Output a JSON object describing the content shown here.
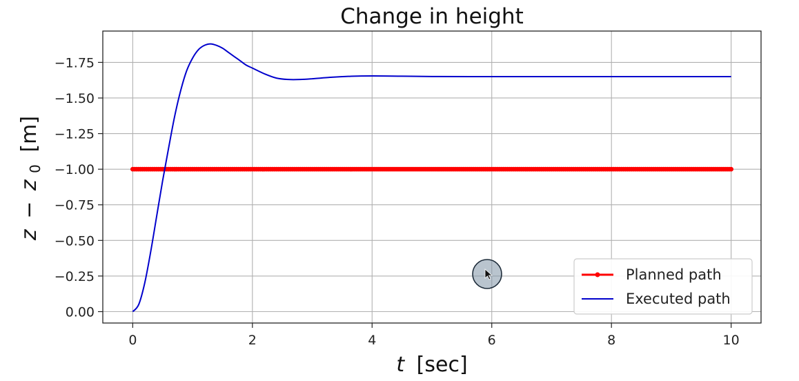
{
  "chart_data": {
    "type": "line",
    "title": "Change in height",
    "xlabel": {
      "var": "t",
      "unit": "[sec]"
    },
    "ylabel": {
      "var": "z",
      "minus": "−",
      "sub_base": "z",
      "sub": "0",
      "unit": "[m]"
    },
    "xlim": [
      -0.5,
      10.5
    ],
    "ylim": [
      0.08,
      -1.97
    ],
    "y_inverted": true,
    "grid": true,
    "legend_position": "lower-right",
    "x_ticks": [
      0,
      2,
      4,
      6,
      8,
      10
    ],
    "x_tick_labels": [
      "0",
      "2",
      "4",
      "6",
      "8",
      "10"
    ],
    "y_ticks": [
      0.0,
      -0.25,
      -0.5,
      -0.75,
      -1.0,
      -1.25,
      -1.5,
      -1.75
    ],
    "y_tick_labels": [
      "0.00",
      "−0.25",
      "−0.50",
      "−0.75",
      "−1.00",
      "−1.25",
      "−1.50",
      "−1.75"
    ],
    "series": [
      {
        "name": "Planned path",
        "color": "#ff0000",
        "style": "line-with-markers",
        "x": [
          0,
          10
        ],
        "y": [
          -1.0,
          -1.0
        ]
      },
      {
        "name": "Executed path",
        "color": "#0000cc",
        "style": "line",
        "x": [
          0,
          0.1,
          0.2,
          0.3,
          0.4,
          0.5,
          0.6,
          0.7,
          0.8,
          0.9,
          1.0,
          1.1,
          1.2,
          1.3,
          1.4,
          1.5,
          1.6,
          1.7,
          1.8,
          1.9,
          2.0,
          2.2,
          2.4,
          2.6,
          2.8,
          3.0,
          3.3,
          3.6,
          4.0,
          4.5,
          5.0,
          6.0,
          7.0,
          8.0,
          9.0,
          10.0
        ],
        "y": [
          0.0,
          -0.05,
          -0.2,
          -0.42,
          -0.67,
          -0.92,
          -1.15,
          -1.37,
          -1.55,
          -1.69,
          -1.78,
          -1.84,
          -1.87,
          -1.88,
          -1.87,
          -1.85,
          -1.82,
          -1.79,
          -1.76,
          -1.73,
          -1.71,
          -1.67,
          -1.64,
          -1.63,
          -1.63,
          -1.635,
          -1.645,
          -1.652,
          -1.655,
          -1.653,
          -1.651,
          -1.65,
          -1.65,
          -1.65,
          -1.65,
          -1.65
        ]
      }
    ]
  },
  "cursor": {
    "icon": "cursor-click-indicator-icon"
  }
}
